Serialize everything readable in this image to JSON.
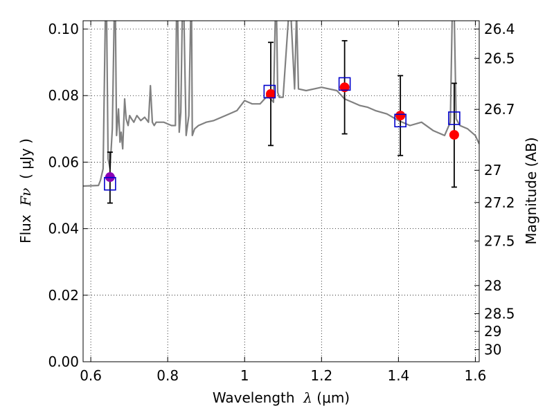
{
  "chart_data": {
    "type": "scatter",
    "title": "",
    "xlabel": {
      "prefix": "Wavelength  ",
      "symbol": "λ",
      "unit": " (μm)"
    },
    "ylabel": {
      "prefix": "Flux  ",
      "symbol": "Fν",
      "unit": "  ( μJy )"
    },
    "ylabel_right": "Magnitude (AB)",
    "xlim": [
      0.58,
      1.61
    ],
    "ylim": [
      0.0,
      0.1025
    ],
    "grid": true,
    "x_ticks": [
      0.6,
      0.8,
      1.0,
      1.2,
      1.4,
      1.6
    ],
    "x_tick_labels": [
      "0.6",
      "0.8",
      "1",
      "1.2",
      "1.4",
      "1.6"
    ],
    "y_ticks": [
      0.0,
      0.02,
      0.04,
      0.06,
      0.08,
      0.1
    ],
    "y_tick_labels": [
      "0.00",
      "0.02",
      "0.04",
      "0.06",
      "0.08",
      "0.10"
    ],
    "mag_ticks": [
      26.4,
      26.5,
      26.7,
      27,
      27.2,
      27.5,
      28,
      28.5,
      29,
      30
    ],
    "mag_tick_labels": [
      "26.4",
      "26.5",
      "26.7",
      "27",
      "27.2",
      "27.5",
      "28",
      "28.5",
      "29",
      "30"
    ],
    "series": [
      {
        "kind": "spectrum",
        "color": "#808080",
        "x": [
          0.58,
          0.62,
          0.625,
          0.632,
          0.638,
          0.641,
          0.645,
          0.65,
          0.656,
          0.661,
          0.664,
          0.667,
          0.672,
          0.676,
          0.679,
          0.683,
          0.688,
          0.692,
          0.697,
          0.701,
          0.706,
          0.712,
          0.72,
          0.73,
          0.74,
          0.75,
          0.755,
          0.76,
          0.765,
          0.77,
          0.79,
          0.81,
          0.82,
          0.823,
          0.826,
          0.83,
          0.834,
          0.838,
          0.842,
          0.848,
          0.855,
          0.86,
          0.862,
          0.864,
          0.87,
          0.88,
          0.9,
          0.92,
          0.95,
          0.98,
          1.0,
          1.02,
          1.04,
          1.06,
          1.075,
          1.08,
          1.083,
          1.086,
          1.09,
          1.1,
          1.115,
          1.12,
          1.13,
          1.135,
          1.14,
          1.16,
          1.2,
          1.24,
          1.26,
          1.28,
          1.3,
          1.32,
          1.34,
          1.37,
          1.4,
          1.43,
          1.46,
          1.49,
          1.52,
          1.535,
          1.54,
          1.545,
          1.55,
          1.56,
          1.58,
          1.6,
          1.61
        ],
        "y": [
          0.0528,
          0.053,
          0.0545,
          0.058,
          0.105,
          0.105,
          0.061,
          0.058,
          0.07,
          0.105,
          0.105,
          0.068,
          0.076,
          0.066,
          0.069,
          0.064,
          0.079,
          0.073,
          0.071,
          0.074,
          0.073,
          0.072,
          0.074,
          0.0725,
          0.0735,
          0.072,
          0.083,
          0.072,
          0.071,
          0.072,
          0.072,
          0.071,
          0.071,
          0.105,
          0.105,
          0.069,
          0.075,
          0.105,
          0.105,
          0.068,
          0.074,
          0.105,
          0.105,
          0.068,
          0.07,
          0.071,
          0.072,
          0.0725,
          0.074,
          0.0755,
          0.0785,
          0.0775,
          0.0775,
          0.08,
          0.078,
          0.105,
          0.105,
          0.081,
          0.0795,
          0.0795,
          0.105,
          0.105,
          0.082,
          0.105,
          0.082,
          0.0815,
          0.0825,
          0.0815,
          0.079,
          0.078,
          0.077,
          0.0765,
          0.0755,
          0.0745,
          0.0725,
          0.071,
          0.072,
          0.0695,
          0.068,
          0.072,
          0.105,
          0.105,
          0.073,
          0.071,
          0.07,
          0.068,
          0.0655
        ]
      },
      {
        "kind": "model-photometry",
        "marker": "open-square",
        "color": "#0000cc",
        "x": [
          0.65,
          1.065,
          1.26,
          1.405,
          1.545
        ],
        "y": [
          0.0535,
          0.0812,
          0.0835,
          0.0725,
          0.0732
        ]
      },
      {
        "kind": "observed-photometry",
        "marker": "filled-circle",
        "colors": [
          "#8b00b5",
          "#ff0000",
          "#ff0000",
          "#ff0000",
          "#ff0000"
        ],
        "x": [
          0.65,
          1.068,
          1.26,
          1.405,
          1.545
        ],
        "y": [
          0.0555,
          0.0805,
          0.0825,
          0.074,
          0.0682
        ],
        "yerr_low": [
          0.0078,
          0.0155,
          0.014,
          0.012,
          0.0157
        ],
        "yerr_high": [
          0.0075,
          0.0155,
          0.014,
          0.012,
          0.0155
        ]
      }
    ]
  }
}
